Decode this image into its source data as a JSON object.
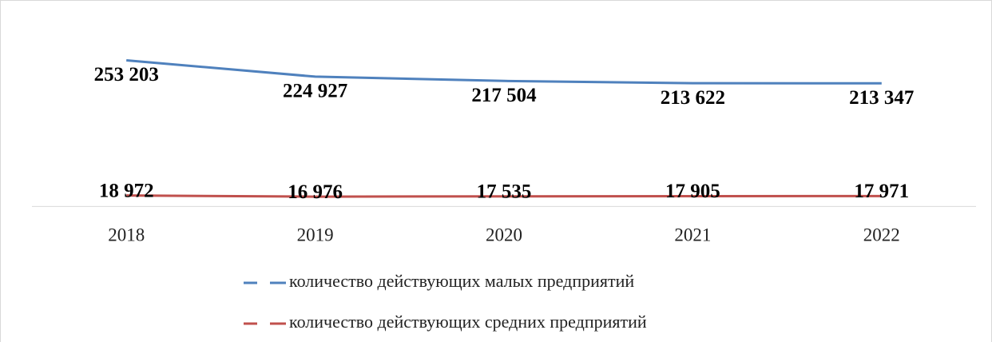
{
  "chart_data": {
    "type": "line",
    "categories": [
      "2018",
      "2019",
      "2020",
      "2021",
      "2022"
    ],
    "series": [
      {
        "name": "количество действующих малых предприятий",
        "color": "#4f81bd",
        "values": [
          253203,
          224927,
          217504,
          213622,
          213347
        ],
        "value_labels": [
          "253 203",
          "224 927",
          "217 504",
          "213 622",
          "213 347"
        ]
      },
      {
        "name": "количество действующих средних предприятий",
        "color": "#c0504d",
        "values": [
          18972,
          16976,
          17535,
          17905,
          17971
        ],
        "value_labels": [
          "18 972",
          "16 976",
          "17 535",
          "17 905",
          "17 971"
        ]
      }
    ],
    "ylim": [
      -5000,
      330000
    ]
  }
}
